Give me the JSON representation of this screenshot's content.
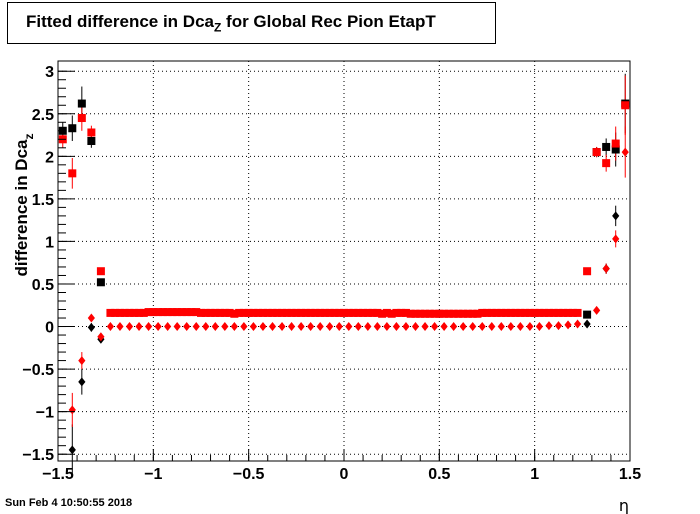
{
  "chart_data": {
    "type": "scatter",
    "title": {
      "main": "Fitted difference in Dca",
      "sub": "Z",
      "rest": " for Global Rec Pion EtapT"
    },
    "ylabel": {
      "main": "difference in Dca",
      "sub": "z"
    },
    "xlabel": "η",
    "xlim": [
      -1.5,
      1.5
    ],
    "ylim": [
      -1.58,
      3.12
    ],
    "x_ticks": [
      -1.5,
      -1,
      -0.5,
      0,
      0.5,
      1,
      1.5
    ],
    "x_tick_labels": [
      "−1.5",
      "−1",
      "−0.5",
      "0",
      "0.5",
      "1",
      "1.5"
    ],
    "y_ticks": [
      -1.5,
      -1,
      -0.5,
      0,
      0.5,
      1,
      1.5,
      2,
      2.5,
      3
    ],
    "y_tick_labels": [
      "−1.5",
      "−1",
      "−0.5",
      "0",
      "0.5",
      "1",
      "1.5",
      "2",
      "2.5",
      "3"
    ],
    "grid": true,
    "series": [
      {
        "marker": "square",
        "color": "#000000",
        "points": [
          {
            "x": -1.475,
            "y": 2.3,
            "err": 0.1
          },
          {
            "x": -1.425,
            "y": 2.33,
            "err": 0.15
          },
          {
            "x": -1.375,
            "y": 2.62,
            "err": 0.2
          },
          {
            "x": -1.325,
            "y": 2.18,
            "err": 0.08
          },
          {
            "x": -1.275,
            "y": 0.52,
            "err": 0.03
          },
          {
            "x": 1.275,
            "y": 0.14,
            "err": 0.02
          },
          {
            "x": 1.325,
            "y": 2.05,
            "err": 0.06
          },
          {
            "x": 1.375,
            "y": 2.11,
            "err": 0.1
          },
          {
            "x": 1.425,
            "y": 2.08,
            "err": 0.2
          },
          {
            "x": 1.475,
            "y": 2.62,
            "err": 0.35
          }
        ]
      },
      {
        "marker": "square",
        "color": "#ff0000",
        "points": [
          {
            "x": -1.475,
            "y": 2.2,
            "err": 0.1
          },
          {
            "x": -1.425,
            "y": 1.8,
            "err": 0.18
          },
          {
            "x": -1.375,
            "y": 2.45,
            "err": 0.15
          },
          {
            "x": -1.325,
            "y": 2.28,
            "err": 0.08
          },
          {
            "x": -1.275,
            "y": 0.65,
            "err": 0.03
          },
          {
            "x": 1.275,
            "y": 0.65,
            "err": 0.03
          },
          {
            "x": 1.325,
            "y": 2.05,
            "err": 0.06
          },
          {
            "x": 1.375,
            "y": 1.92,
            "err": 0.1
          },
          {
            "x": 1.425,
            "y": 2.15,
            "err": 0.2
          },
          {
            "x": 1.475,
            "y": 2.6,
            "err": 0.35
          }
        ]
      },
      {
        "marker": "diamond",
        "color": "#000000",
        "points": [
          {
            "x": -1.425,
            "y": -1.45,
            "err": 0.3
          },
          {
            "x": -1.375,
            "y": -0.65,
            "err": 0.15
          },
          {
            "x": -1.325,
            "y": -0.01,
            "err": 0.05
          },
          {
            "x": -1.275,
            "y": -0.15,
            "err": 0.02
          },
          {
            "x": 1.275,
            "y": 0.03,
            "err": 0.02
          },
          {
            "x": 1.375,
            "y": 0.68,
            "err": 0.06
          },
          {
            "x": 1.425,
            "y": 1.3,
            "err": 0.12
          }
        ]
      },
      {
        "marker": "diamond",
        "color": "#ff0000",
        "points": [
          {
            "x": -1.425,
            "y": -0.98,
            "err": 0.2
          },
          {
            "x": -1.375,
            "y": -0.4,
            "err": 0.1
          },
          {
            "x": -1.325,
            "y": 0.1,
            "err": 0.04
          },
          {
            "x": -1.275,
            "y": -0.12,
            "err": 0.02
          },
          {
            "x": 1.325,
            "y": 0.19,
            "err": 0.03
          },
          {
            "x": 1.375,
            "y": 0.68,
            "err": 0.06
          },
          {
            "x": 1.425,
            "y": 1.03,
            "err": 0.1
          },
          {
            "x": 1.475,
            "y": 2.05,
            "err": 0.3
          }
        ]
      },
      {
        "marker": "square",
        "color": "#ff0000",
        "x_start": -1.225,
        "x_step": 0.025,
        "values": [
          0.16,
          0.16,
          0.16,
          0.16,
          0.16,
          0.16,
          0.16,
          0.16,
          0.17,
          0.17,
          0.17,
          0.17,
          0.17,
          0.17,
          0.17,
          0.17,
          0.17,
          0.17,
          0.17,
          0.16,
          0.16,
          0.16,
          0.16,
          0.16,
          0.16,
          0.16,
          0.15,
          0.16,
          0.16,
          0.16,
          0.16,
          0.16,
          0.16,
          0.16,
          0.16,
          0.16,
          0.16,
          0.16,
          0.16,
          0.16,
          0.16,
          0.16,
          0.16,
          0.16,
          0.16,
          0.16,
          0.16,
          0.16,
          0.16,
          0.16,
          0.16,
          0.16,
          0.16,
          0.16,
          0.16,
          0.16,
          0.16,
          0.15,
          0.16,
          0.15,
          0.16,
          0.16,
          0.16,
          0.15,
          0.15,
          0.15,
          0.15,
          0.15,
          0.15,
          0.15,
          0.15,
          0.15,
          0.15,
          0.15,
          0.15,
          0.15,
          0.15,
          0.15,
          0.16,
          0.16,
          0.16,
          0.16,
          0.16,
          0.16,
          0.16,
          0.16,
          0.16,
          0.16,
          0.16,
          0.16,
          0.16,
          0.16,
          0.16,
          0.16,
          0.16,
          0.16,
          0.16,
          0.16,
          0.16
        ]
      },
      {
        "marker": "diamond",
        "color": "#ff0000",
        "x_start": -1.225,
        "x_step": 0.05,
        "values": [
          0,
          0,
          0,
          0,
          0,
          0,
          0,
          0,
          0,
          0,
          0,
          0,
          0,
          0,
          0,
          0,
          0,
          0,
          0,
          0,
          0,
          0,
          0,
          0,
          0,
          0,
          0,
          0,
          0,
          0,
          0,
          0,
          0,
          0,
          0,
          0,
          0,
          0,
          0,
          0,
          0,
          0,
          0,
          0,
          0,
          0,
          0.01,
          0.01,
          0.02,
          0.03
        ]
      }
    ]
  },
  "footer": "Sun Feb  4 10:50:55 2018"
}
